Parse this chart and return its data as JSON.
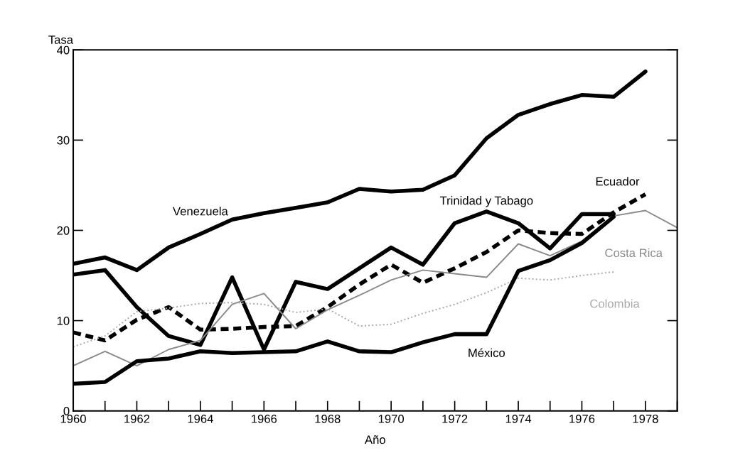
{
  "chart_data": {
    "type": "line",
    "xlabel": "Año",
    "ylabel": "Tasa",
    "x": [
      1960,
      1961,
      1962,
      1963,
      1964,
      1965,
      1966,
      1967,
      1968,
      1969,
      1970,
      1971,
      1972,
      1973,
      1974,
      1975,
      1976,
      1977,
      1978,
      1979
    ],
    "series": [
      {
        "name": "Venezuela",
        "color": "#000000",
        "line_style": "solid",
        "values": [
          16.3,
          17.0,
          15.6,
          18.1,
          19.6,
          21.2,
          21.9,
          22.5,
          23.1,
          24.6,
          24.3,
          24.5,
          26.1,
          30.2,
          32.8,
          34.0,
          35.0,
          34.8,
          37.6,
          null
        ]
      },
      {
        "name": "Trinidad y Tabago",
        "color": "#000000",
        "line_style": "solid",
        "values": [
          15.1,
          15.6,
          11.5,
          8.3,
          7.3,
          14.8,
          6.8,
          14.3,
          13.5,
          15.8,
          18.1,
          16.2,
          20.8,
          22.1,
          20.8,
          18.0,
          21.8,
          21.8,
          null,
          null
        ]
      },
      {
        "name": "Ecuador",
        "color": "#000000",
        "line_style": "dashed",
        "values": [
          8.7,
          7.8,
          10.1,
          11.5,
          9.0,
          9.1,
          9.3,
          9.4,
          11.5,
          14.0,
          16.2,
          14.2,
          15.8,
          17.6,
          20.0,
          19.7,
          19.6,
          22.0,
          24.0,
          null
        ]
      },
      {
        "name": "Costa Rica",
        "color": "#8a8a8a",
        "line_style": "solid",
        "values": [
          5.0,
          6.6,
          5.0,
          6.8,
          7.8,
          11.8,
          13.0,
          9.1,
          11.2,
          12.8,
          14.5,
          15.6,
          15.2,
          14.8,
          18.5,
          17.2,
          18.8,
          21.6,
          22.2,
          20.3
        ]
      },
      {
        "name": "Colombia",
        "color": "#a8a8a8",
        "line_style": "dotted",
        "values": [
          7.1,
          8.3,
          11.0,
          11.4,
          11.9,
          12.0,
          11.8,
          10.9,
          11.3,
          9.4,
          9.6,
          10.8,
          11.8,
          13.1,
          14.7,
          14.5,
          15.0,
          15.4,
          null,
          null
        ]
      },
      {
        "name": "México",
        "color": "#000000",
        "line_style": "solid",
        "values": [
          3.0,
          3.2,
          5.5,
          5.8,
          6.6,
          6.4,
          6.5,
          6.6,
          7.7,
          6.6,
          6.5,
          7.6,
          8.5,
          8.5,
          15.5,
          16.7,
          18.6,
          21.5,
          null,
          null
        ]
      }
    ],
    "xlim": [
      1960,
      1979
    ],
    "xticks": [
      1960,
      {
        "value": 1961,
        "label": null
      },
      1962,
      {
        "value": 1963,
        "label": null
      },
      1964,
      {
        "value": 1965,
        "label": null
      },
      1966,
      {
        "value": 1967,
        "label": null
      },
      1968,
      {
        "value": 1969,
        "label": null
      },
      1970,
      {
        "value": 1971,
        "label": null
      },
      1972,
      {
        "value": 1973,
        "label": null
      },
      1974,
      {
        "value": 1975,
        "label": null
      },
      1976,
      {
        "value": 1977,
        "label": null
      },
      1978,
      {
        "value": 1979,
        "label": null
      }
    ],
    "ylim": [
      0,
      40
    ],
    "yticks": [
      0,
      10,
      20,
      30,
      40
    ],
    "grid": false,
    "legend": false
  }
}
